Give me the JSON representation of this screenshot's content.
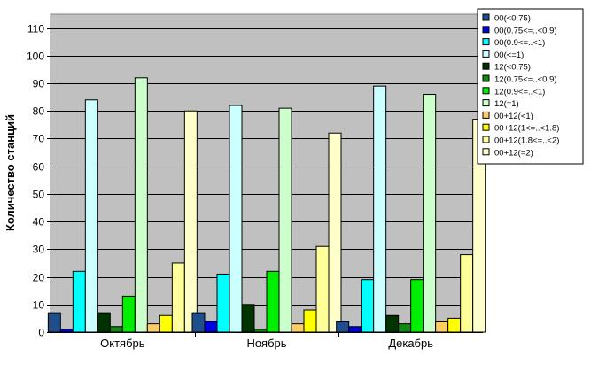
{
  "chart_data": {
    "type": "bar",
    "ylabel": "Количество станций",
    "categories": [
      "Октябрь",
      "Ноябрь",
      "Декабрь"
    ],
    "ylim": [
      0,
      115
    ],
    "yticks": [
      0,
      10,
      20,
      30,
      40,
      50,
      60,
      70,
      80,
      90,
      100,
      110
    ],
    "grid": true,
    "legend_position": "top-right",
    "series": [
      {
        "name": "00(<0.75)",
        "color": "#1f4e8c",
        "values": [
          7,
          7,
          4
        ]
      },
      {
        "name": "00(0.75<=..<0.9)",
        "color": "#0000e0",
        "values": [
          1,
          4,
          2
        ]
      },
      {
        "name": "00(0.9<=..<1)",
        "color": "#00ffff",
        "values": [
          22,
          21,
          19
        ]
      },
      {
        "name": "00(<=1)",
        "color": "#ccffff",
        "values": [
          84,
          82,
          89
        ]
      },
      {
        "name": "12(<0.75)",
        "color": "#003300",
        "values": [
          7,
          10,
          6
        ]
      },
      {
        "name": "12(0.75<=..<0.9)",
        "color": "#118811",
        "values": [
          2,
          1,
          3
        ]
      },
      {
        "name": "12(0.9<=..<1)",
        "color": "#00ee00",
        "values": [
          13,
          22,
          19
        ]
      },
      {
        "name": "12(=1)",
        "color": "#ccffcc",
        "values": [
          92,
          81,
          86
        ]
      },
      {
        "name": "00+12(<1)",
        "color": "#ffcc66",
        "values": [
          3,
          3,
          4
        ]
      },
      {
        "name": "00+12(1<=..<1.8)",
        "color": "#ffff00",
        "values": [
          6,
          8,
          5
        ]
      },
      {
        "name": "00+12(1.8<=..<2)",
        "color": "#ffff99",
        "values": [
          25,
          31,
          28
        ]
      },
      {
        "name": "00+12(=2)",
        "color": "#ffffcc",
        "values": [
          80,
          72,
          77
        ]
      }
    ]
  }
}
